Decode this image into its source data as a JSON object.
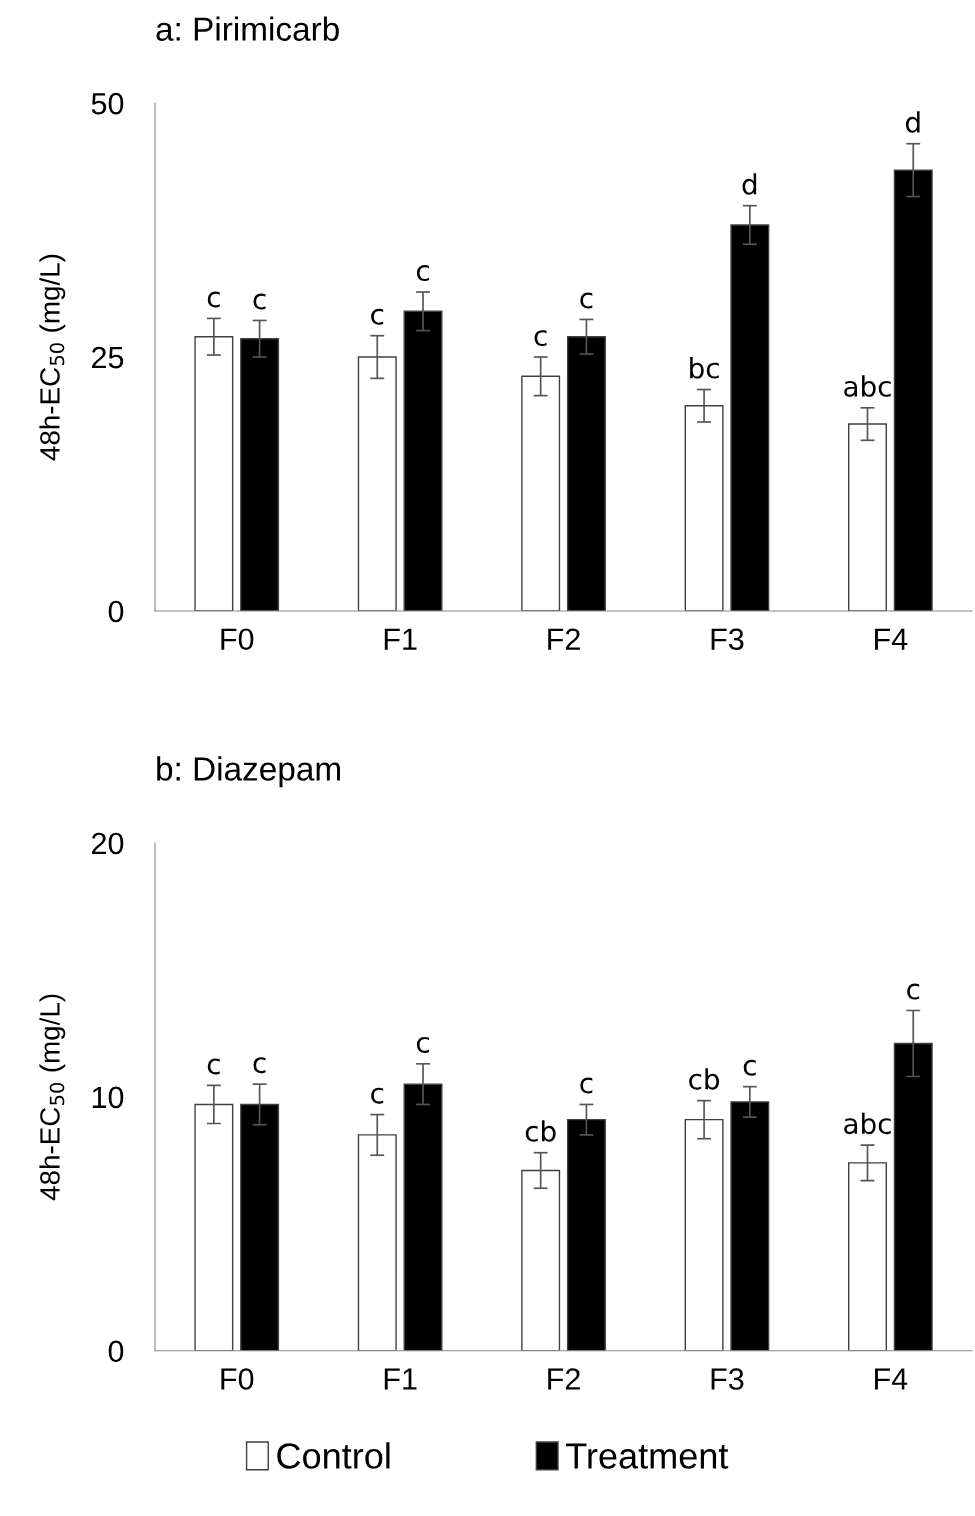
{
  "chart_data": [
    {
      "type": "bar",
      "title": "a: Pirimicarb",
      "ylabel": "48h-EC$_{50}$ (mg/L)",
      "categories": [
        "F0",
        "F1",
        "F2",
        "F3",
        "F4"
      ],
      "ylim": [
        0,
        50
      ],
      "yticks": [
        0,
        25,
        50
      ],
      "grid": false,
      "legend": "bottom",
      "series": [
        {
          "name": "Control",
          "color": "#ffffff",
          "values": [
            27.0,
            25.0,
            23.1,
            20.2,
            18.4
          ],
          "errors": [
            1.8,
            2.1,
            1.9,
            1.6,
            1.6
          ]
        },
        {
          "name": "Treatment",
          "color": "#000000",
          "values": [
            26.8,
            29.5,
            27.0,
            38.0,
            43.4
          ],
          "errors": [
            1.8,
            1.9,
            1.7,
            1.9,
            2.6
          ]
        }
      ],
      "annotations": [
        "c",
        "c",
        "c",
        "c",
        "c",
        "c",
        "bc",
        "d",
        "abc",
        "d"
      ]
    },
    {
      "type": "bar",
      "title": "b: Diazepam",
      "ylabel": "48h-EC$_{50}$ (mg/L)",
      "categories": [
        "F0",
        "F1",
        "F2",
        "F3",
        "F4"
      ],
      "ylim": [
        0,
        20
      ],
      "yticks": [
        0,
        10,
        20
      ],
      "grid": false,
      "series": [
        {
          "color": "#ffffff",
          "values": [
            9.7,
            8.5,
            7.1,
            9.1,
            7.4
          ],
          "errors": [
            0.75,
            0.8,
            0.7,
            0.75,
            0.7
          ]
        },
        {
          "color": "#000000",
          "values": [
            9.7,
            10.5,
            9.1,
            9.8,
            12.1
          ],
          "errors": [
            0.8,
            0.8,
            0.6,
            0.6,
            1.3
          ]
        }
      ],
      "annotations": [
        "c",
        "c",
        "c",
        "c",
        "cb",
        "c",
        "cb",
        "c",
        "abc",
        "c"
      ]
    }
  ]
}
